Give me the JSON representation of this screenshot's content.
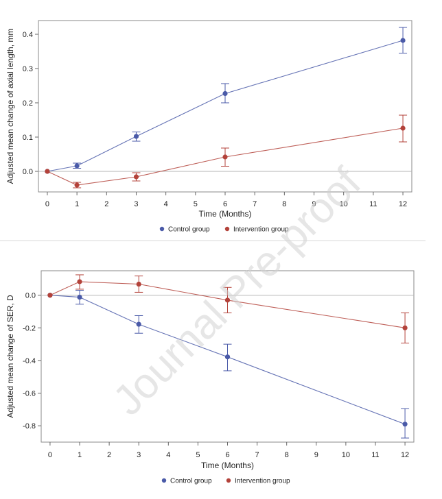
{
  "watermark": "Journal Pre-proof",
  "chart_data": [
    {
      "type": "line",
      "xlabel": "Time (Months)",
      "ylabel": "Adjusted mean change of axial length, mm",
      "xlim": [
        -0.3,
        12.3
      ],
      "ylim": [
        -0.06,
        0.44
      ],
      "xticks": [
        0,
        1,
        2,
        3,
        4,
        5,
        6,
        7,
        8,
        9,
        10,
        11,
        12
      ],
      "yticks": [
        0.0,
        0.1,
        0.2,
        0.3,
        0.4
      ],
      "ytick_labels": [
        "0.0",
        "0.1",
        "0.2",
        "0.3",
        "0.4"
      ],
      "reference_line": 0,
      "grid": false,
      "legend_position": "bottom",
      "series": [
        {
          "name": "Control group",
          "color": "#4a5aa8",
          "x": [
            0,
            1,
            3,
            6,
            12
          ],
          "y": [
            0.0,
            0.016,
            0.102,
            0.227,
            0.382
          ],
          "err_low": [
            0.0,
            0.009,
            0.088,
            0.2,
            0.345
          ],
          "err_high": [
            0.0,
            0.024,
            0.115,
            0.256,
            0.42
          ]
        },
        {
          "name": "Intervention group",
          "color": "#b3423a",
          "x": [
            0,
            1,
            3,
            6,
            12
          ],
          "y": [
            0.0,
            -0.04,
            -0.016,
            0.042,
            0.126
          ],
          "err_low": [
            0.0,
            -0.048,
            -0.028,
            0.015,
            0.086
          ],
          "err_high": [
            0.0,
            -0.032,
            -0.004,
            0.068,
            0.164
          ]
        }
      ]
    },
    {
      "type": "line",
      "xlabel": "Time (Months)",
      "ylabel": "Adjusted mean change of SER, D",
      "xlim": [
        -0.3,
        12.3
      ],
      "ylim": [
        -0.9,
        0.15
      ],
      "xticks": [
        0,
        1,
        2,
        3,
        4,
        5,
        6,
        7,
        8,
        9,
        10,
        11,
        12
      ],
      "yticks": [
        0.0,
        -0.2,
        -0.4,
        -0.6,
        -0.8
      ],
      "ytick_labels": [
        "0.0",
        "-0.2",
        "-0.4",
        "-0.6",
        "-0.8"
      ],
      "reference_line": 0,
      "grid": false,
      "legend_position": "bottom",
      "series": [
        {
          "name": "Control group",
          "color": "#4a5aa8",
          "x": [
            0,
            1,
            3,
            6,
            12
          ],
          "y": [
            0.0,
            -0.012,
            -0.178,
            -0.378,
            -0.79
          ],
          "err_low": [
            0.0,
            -0.055,
            -0.233,
            -0.463,
            -0.875
          ],
          "err_high": [
            0.0,
            0.03,
            -0.125,
            -0.3,
            -0.695
          ]
        },
        {
          "name": "Intervention group",
          "color": "#b3423a",
          "x": [
            0,
            1,
            3,
            6,
            12
          ],
          "y": [
            0.0,
            0.083,
            0.068,
            -0.03,
            -0.2
          ],
          "err_low": [
            0.0,
            0.037,
            0.018,
            -0.108,
            -0.293
          ],
          "err_high": [
            0.0,
            0.125,
            0.118,
            0.048,
            -0.108
          ]
        }
      ]
    }
  ]
}
